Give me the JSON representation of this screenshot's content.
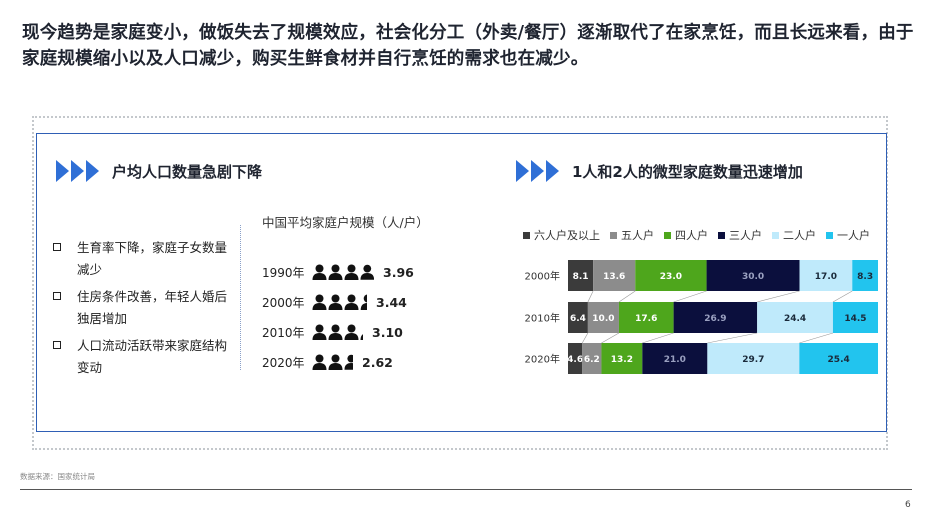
{
  "headline": "现今趋势是家庭变小，做饭失去了规模效应，社会化分工（外卖/餐厅）逐渐取代了在家烹饪，而且长远来看，由于家庭规模缩小以及人口减少，购买生鲜食材并自行烹饪的需求也在减少。",
  "left_section": {
    "title": "户均人口数量急剧下降",
    "bullets": [
      "生育率下降，家庭子女数量减少",
      "住房条件改善，年轻人婚后独居增加",
      "人口流动活跃带来家庭结构变动"
    ],
    "household_chart": {
      "title": "中国平均家庭户规模（人/户）",
      "rows": [
        {
          "year": "1990年",
          "value": 3.96,
          "label": "3.96"
        },
        {
          "year": "2000年",
          "value": 3.44,
          "label": "3.44"
        },
        {
          "year": "2010年",
          "value": 3.1,
          "label": "3.10"
        },
        {
          "year": "2020年",
          "value": 2.62,
          "label": "2.62"
        }
      ]
    }
  },
  "right_section": {
    "title": "1人和2人的微型家庭数量迅速增加"
  },
  "chart_data": {
    "type": "bar",
    "stacked": true,
    "orientation": "horizontal",
    "percent_stacked": true,
    "categories": [
      "2000年",
      "2010年",
      "2020年"
    ],
    "series": [
      {
        "name": "六人户及以上",
        "color": "#3b3b3b",
        "values": [
          8.1,
          6.4,
          4.6
        ]
      },
      {
        "name": "五人户",
        "color": "#8c8c8c",
        "values": [
          13.6,
          10.0,
          6.2
        ]
      },
      {
        "name": "四人户",
        "color": "#4ea61c",
        "values": [
          23.0,
          17.6,
          13.2
        ]
      },
      {
        "name": "三人户",
        "color": "#0b0f3d",
        "values": [
          30.0,
          26.9,
          21.0
        ]
      },
      {
        "name": "二人户",
        "color": "#bfeafb",
        "values": [
          17.0,
          24.4,
          29.7
        ]
      },
      {
        "name": "一人户",
        "color": "#22c4ee",
        "values": [
          8.3,
          14.5,
          25.4
        ]
      }
    ],
    "labels": [
      [
        "8.1",
        "13.6",
        "23.0",
        "30.0",
        "17.0",
        "8.3"
      ],
      [
        "6.4",
        "10.0",
        "17.6",
        "26.9",
        "24.4",
        "14.5"
      ],
      [
        "4.6",
        "6.2",
        "13.2",
        "21.0",
        "29.7",
        "25.4"
      ]
    ],
    "legend_position": "top",
    "grid": false
  },
  "source": "数据来源：国家统计局",
  "page_number": "6",
  "colors": {
    "accent": "#2f6fd6",
    "frame": "#2f5fb5"
  }
}
